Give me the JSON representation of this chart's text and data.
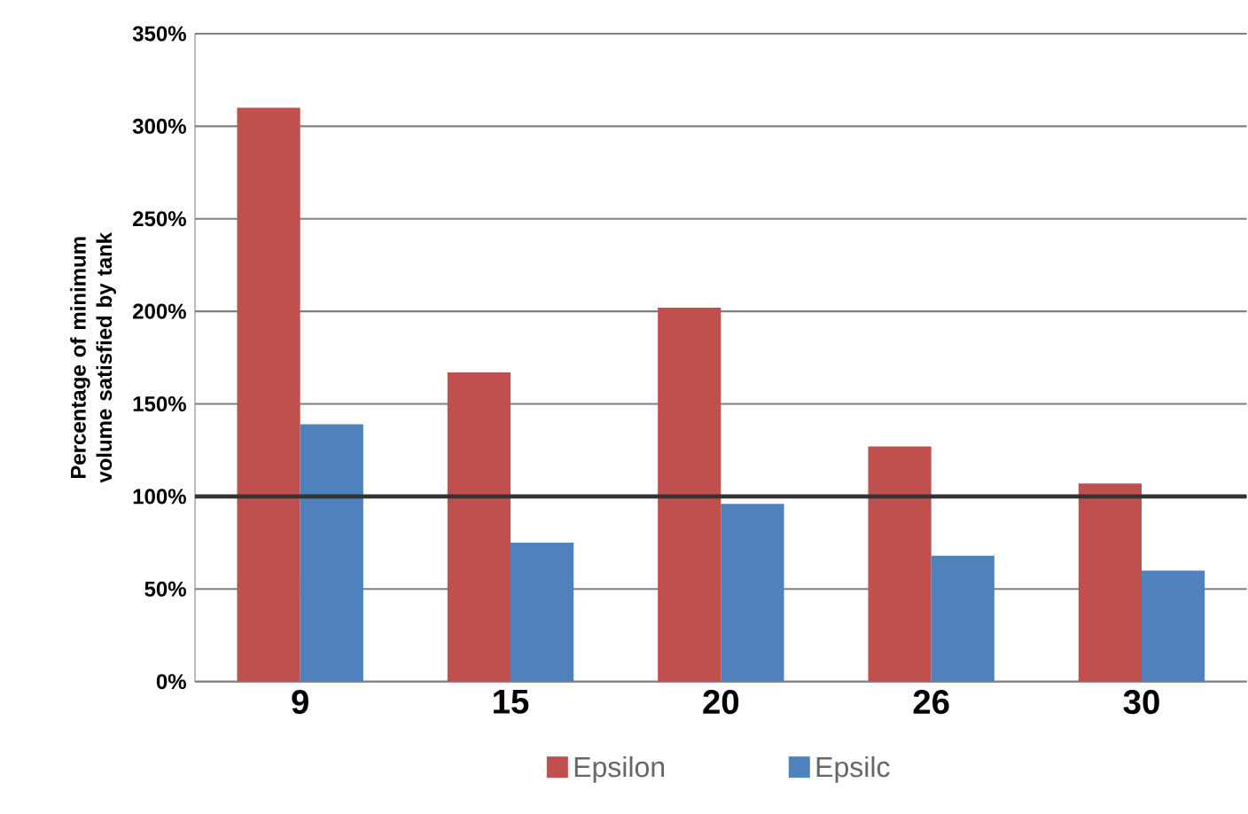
{
  "chart_data": {
    "type": "bar",
    "ylabel": "Percentage of minimum volume satisfied by tank",
    "categories": [
      "9",
      "15",
      "20",
      "26",
      "30"
    ],
    "series": [
      {
        "name": "Epsilon",
        "color": "#c0504d",
        "values": [
          310,
          167,
          202,
          127,
          107
        ]
      },
      {
        "name": "Epsilc",
        "color": "#4f81bd",
        "values": [
          139,
          75,
          96,
          68,
          60
        ]
      }
    ],
    "ylim": [
      0,
      350
    ],
    "yticks": [
      {
        "value": 0,
        "label": "0%"
      },
      {
        "value": 50,
        "label": "50%"
      },
      {
        "value": 100,
        "label": "100%"
      },
      {
        "value": 150,
        "label": "150%"
      },
      {
        "value": 200,
        "label": "200%"
      },
      {
        "value": 250,
        "label": "250%"
      },
      {
        "value": 300,
        "label": "300%"
      },
      {
        "value": 350,
        "label": "350%"
      }
    ],
    "ref_lines": [
      {
        "axis": "y",
        "value": 100,
        "color": "#333333"
      }
    ],
    "grid": "y",
    "legend": "bottom"
  }
}
